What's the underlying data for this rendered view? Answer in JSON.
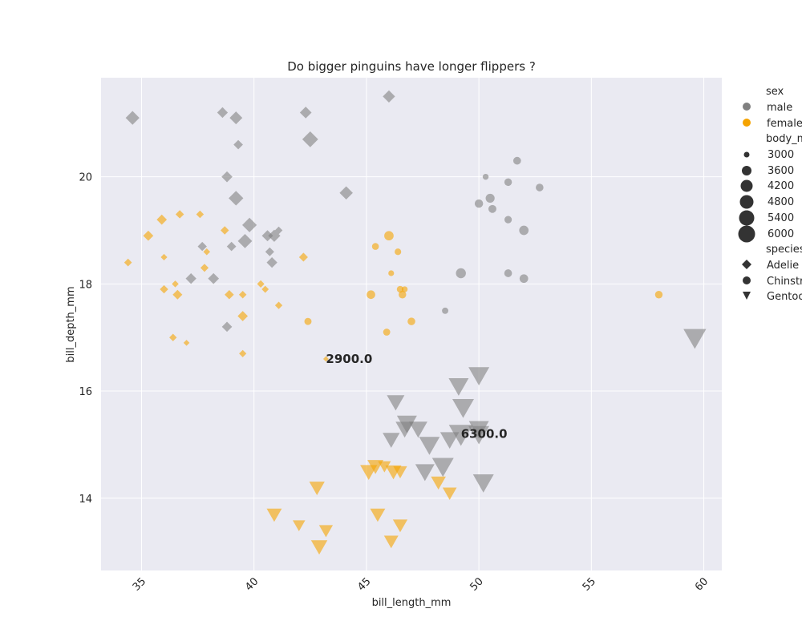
{
  "chart_data": {
    "type": "scatter",
    "title": "Do bigger pinguins have longer flippers ?",
    "xlabel": "bill_length_mm",
    "ylabel": "bill_depth_mm",
    "xlim": [
      33.2,
      60.8
    ],
    "ylim": [
      12.65,
      21.85
    ],
    "xticks": [
      35,
      40,
      45,
      50,
      55,
      60
    ],
    "yticks": [
      14,
      16,
      18,
      20
    ],
    "grid": true,
    "legend_placement": "outside-right",
    "legend": {
      "sex_title": "sex",
      "sex": [
        {
          "label": "male",
          "color": "#808080"
        },
        {
          "label": "female",
          "color": "#f5a300"
        }
      ],
      "size_title": "body_mass_g",
      "sizes": [
        {
          "label": "3000",
          "value": 3000
        },
        {
          "label": "3600",
          "value": 3600
        },
        {
          "label": "4200",
          "value": 4200
        },
        {
          "label": "4800",
          "value": 4800
        },
        {
          "label": "5400",
          "value": 5400
        },
        {
          "label": "6000",
          "value": 6000
        }
      ],
      "species_title": "species",
      "species": [
        {
          "label": "Adelie",
          "marker": "diamond"
        },
        {
          "label": "Chinstrap",
          "marker": "circle"
        },
        {
          "label": "Gentoo",
          "marker": "triangle-down"
        }
      ]
    },
    "colors": {
      "male": "#808080",
      "female": "#f5a300",
      "background": "#eaeaf2",
      "grid": "#ffffff"
    },
    "annotations": [
      {
        "text": "2900.0",
        "x": 43.2,
        "y": 16.6
      },
      {
        "text": "6300.0",
        "x": 49.2,
        "y": 15.2
      }
    ],
    "points": [
      {
        "x": 34.6,
        "y": 21.1,
        "sex": "male",
        "species": "Adelie",
        "mass": 4500
      },
      {
        "x": 38.6,
        "y": 21.2,
        "sex": "male",
        "species": "Adelie",
        "mass": 3900
      },
      {
        "x": 39.2,
        "y": 21.1,
        "sex": "male",
        "species": "Adelie",
        "mass": 4300
      },
      {
        "x": 42.3,
        "y": 21.2,
        "sex": "male",
        "species": "Adelie",
        "mass": 4100
      },
      {
        "x": 42.5,
        "y": 20.7,
        "sex": "male",
        "species": "Adelie",
        "mass": 4900
      },
      {
        "x": 46.0,
        "y": 21.5,
        "sex": "male",
        "species": "Adelie",
        "mass": 4200
      },
      {
        "x": 39.3,
        "y": 20.6,
        "sex": "male",
        "species": "Adelie",
        "mass": 3650
      },
      {
        "x": 38.8,
        "y": 20.0,
        "sex": "male",
        "species": "Adelie",
        "mass": 3950
      },
      {
        "x": 39.2,
        "y": 19.6,
        "sex": "male",
        "species": "Adelie",
        "mass": 4675
      },
      {
        "x": 44.1,
        "y": 19.7,
        "sex": "male",
        "species": "Adelie",
        "mass": 4400
      },
      {
        "x": 39.8,
        "y": 19.1,
        "sex": "male",
        "species": "Adelie",
        "mass": 4650
      },
      {
        "x": 40.6,
        "y": 18.9,
        "sex": "male",
        "species": "Adelie",
        "mass": 4000
      },
      {
        "x": 40.9,
        "y": 18.9,
        "sex": "male",
        "species": "Adelie",
        "mass": 4200
      },
      {
        "x": 41.1,
        "y": 19.0,
        "sex": "male",
        "species": "Adelie",
        "mass": 3300
      },
      {
        "x": 37.7,
        "y": 18.7,
        "sex": "male",
        "species": "Adelie",
        "mass": 3600
      },
      {
        "x": 39.0,
        "y": 18.7,
        "sex": "male",
        "species": "Adelie",
        "mass": 3650
      },
      {
        "x": 39.6,
        "y": 18.8,
        "sex": "male",
        "species": "Adelie",
        "mass": 4600
      },
      {
        "x": 40.7,
        "y": 18.6,
        "sex": "male",
        "species": "Adelie",
        "mass": 3550
      },
      {
        "x": 40.8,
        "y": 18.4,
        "sex": "male",
        "species": "Adelie",
        "mass": 3900
      },
      {
        "x": 37.2,
        "y": 18.1,
        "sex": "male",
        "species": "Adelie",
        "mass": 3900
      },
      {
        "x": 38.2,
        "y": 18.1,
        "sex": "male",
        "species": "Adelie",
        "mass": 3950
      },
      {
        "x": 38.8,
        "y": 17.2,
        "sex": "male",
        "species": "Adelie",
        "mass": 3800
      },
      {
        "x": 34.4,
        "y": 18.4,
        "sex": "female",
        "species": "Adelie",
        "mass": 3325
      },
      {
        "x": 35.3,
        "y": 18.9,
        "sex": "female",
        "species": "Adelie",
        "mass": 3800
      },
      {
        "x": 35.9,
        "y": 19.2,
        "sex": "female",
        "species": "Adelie",
        "mass": 3800
      },
      {
        "x": 36.7,
        "y": 19.3,
        "sex": "female",
        "species": "Adelie",
        "mass": 3450
      },
      {
        "x": 37.6,
        "y": 19.3,
        "sex": "female",
        "species": "Adelie",
        "mass": 3300
      },
      {
        "x": 38.7,
        "y": 19.0,
        "sex": "female",
        "species": "Adelie",
        "mass": 3450
      },
      {
        "x": 36.0,
        "y": 18.5,
        "sex": "female",
        "species": "Adelie",
        "mass": 3100
      },
      {
        "x": 37.8,
        "y": 18.3,
        "sex": "female",
        "species": "Adelie",
        "mass": 3400
      },
      {
        "x": 37.9,
        "y": 18.6,
        "sex": "female",
        "species": "Adelie",
        "mass": 3150
      },
      {
        "x": 42.2,
        "y": 18.5,
        "sex": "female",
        "species": "Adelie",
        "mass": 3550
      },
      {
        "x": 36.0,
        "y": 17.9,
        "sex": "female",
        "species": "Adelie",
        "mass": 3450
      },
      {
        "x": 36.5,
        "y": 18.0,
        "sex": "female",
        "species": "Adelie",
        "mass": 3150
      },
      {
        "x": 36.6,
        "y": 17.8,
        "sex": "female",
        "species": "Adelie",
        "mass": 3700
      },
      {
        "x": 38.9,
        "y": 17.8,
        "sex": "female",
        "species": "Adelie",
        "mass": 3625
      },
      {
        "x": 39.5,
        "y": 17.8,
        "sex": "female",
        "species": "Adelie",
        "mass": 3300
      },
      {
        "x": 40.3,
        "y": 18.0,
        "sex": "female",
        "species": "Adelie",
        "mass": 3250
      },
      {
        "x": 40.5,
        "y": 17.9,
        "sex": "female",
        "species": "Adelie",
        "mass": 3200
      },
      {
        "x": 39.5,
        "y": 17.4,
        "sex": "female",
        "species": "Adelie",
        "mass": 3800
      },
      {
        "x": 41.1,
        "y": 17.6,
        "sex": "female",
        "species": "Adelie",
        "mass": 3275
      },
      {
        "x": 36.4,
        "y": 17.0,
        "sex": "female",
        "species": "Adelie",
        "mass": 3275
      },
      {
        "x": 37.0,
        "y": 16.9,
        "sex": "female",
        "species": "Adelie",
        "mass": 3000
      },
      {
        "x": 39.5,
        "y": 16.7,
        "sex": "female",
        "species": "Adelie",
        "mass": 3250
      },
      {
        "x": 43.2,
        "y": 16.6,
        "sex": "female",
        "species": "Adelie",
        "mass": 2900
      },
      {
        "x": 50.3,
        "y": 20.0,
        "sex": "male",
        "species": "Chinstrap",
        "mass": 3300
      },
      {
        "x": 51.7,
        "y": 20.3,
        "sex": "male",
        "species": "Chinstrap",
        "mass": 3750
      },
      {
        "x": 51.3,
        "y": 19.9,
        "sex": "male",
        "species": "Chinstrap",
        "mass": 3700
      },
      {
        "x": 52.7,
        "y": 19.8,
        "sex": "male",
        "species": "Chinstrap",
        "mass": 3725
      },
      {
        "x": 50.0,
        "y": 19.5,
        "sex": "male",
        "species": "Chinstrap",
        "mass": 3900
      },
      {
        "x": 50.5,
        "y": 19.6,
        "sex": "male",
        "species": "Chinstrap",
        "mass": 4050
      },
      {
        "x": 50.6,
        "y": 19.4,
        "sex": "male",
        "species": "Chinstrap",
        "mass": 3800
      },
      {
        "x": 51.3,
        "y": 19.2,
        "sex": "male",
        "species": "Chinstrap",
        "mass": 3650
      },
      {
        "x": 52.0,
        "y": 19.0,
        "sex": "male",
        "species": "Chinstrap",
        "mass": 4150
      },
      {
        "x": 49.2,
        "y": 18.2,
        "sex": "male",
        "species": "Chinstrap",
        "mass": 4300
      },
      {
        "x": 51.3,
        "y": 18.2,
        "sex": "male",
        "species": "Chinstrap",
        "mass": 3750
      },
      {
        "x": 52.0,
        "y": 18.1,
        "sex": "male",
        "species": "Chinstrap",
        "mass": 3950
      },
      {
        "x": 48.5,
        "y": 17.5,
        "sex": "male",
        "species": "Chinstrap",
        "mass": 3400
      },
      {
        "x": 46.0,
        "y": 18.9,
        "sex": "female",
        "species": "Chinstrap",
        "mass": 4150
      },
      {
        "x": 45.4,
        "y": 18.7,
        "sex": "female",
        "species": "Chinstrap",
        "mass": 3525
      },
      {
        "x": 46.4,
        "y": 18.6,
        "sex": "female",
        "species": "Chinstrap",
        "mass": 3450
      },
      {
        "x": 46.1,
        "y": 18.2,
        "sex": "female",
        "species": "Chinstrap",
        "mass": 3250
      },
      {
        "x": 46.5,
        "y": 17.9,
        "sex": "female",
        "species": "Chinstrap",
        "mass": 3500
      },
      {
        "x": 46.7,
        "y": 17.9,
        "sex": "female",
        "species": "Chinstrap",
        "mass": 3300
      },
      {
        "x": 45.2,
        "y": 17.8,
        "sex": "female",
        "species": "Chinstrap",
        "mass": 3950
      },
      {
        "x": 46.6,
        "y": 17.8,
        "sex": "female",
        "species": "Chinstrap",
        "mass": 3700
      },
      {
        "x": 58.0,
        "y": 17.8,
        "sex": "female",
        "species": "Chinstrap",
        "mass": 3700
      },
      {
        "x": 42.4,
        "y": 17.3,
        "sex": "female",
        "species": "Chinstrap",
        "mass": 3600
      },
      {
        "x": 47.0,
        "y": 17.3,
        "sex": "female",
        "species": "Chinstrap",
        "mass": 3725
      },
      {
        "x": 45.9,
        "y": 17.1,
        "sex": "female",
        "species": "Chinstrap",
        "mass": 3575
      },
      {
        "x": 59.6,
        "y": 17.0,
        "sex": "male",
        "species": "Gentoo",
        "mass": 6050
      },
      {
        "x": 50.0,
        "y": 16.3,
        "sex": "male",
        "species": "Gentoo",
        "mass": 5700
      },
      {
        "x": 49.1,
        "y": 16.1,
        "sex": "male",
        "species": "Gentoo",
        "mass": 5550
      },
      {
        "x": 46.3,
        "y": 15.8,
        "sex": "male",
        "species": "Gentoo",
        "mass": 5100
      },
      {
        "x": 49.3,
        "y": 15.7,
        "sex": "male",
        "species": "Gentoo",
        "mass": 5850
      },
      {
        "x": 46.8,
        "y": 15.4,
        "sex": "male",
        "species": "Gentoo",
        "mass": 5550
      },
      {
        "x": 46.7,
        "y": 15.3,
        "sex": "male",
        "species": "Gentoo",
        "mass": 5200
      },
      {
        "x": 47.3,
        "y": 15.3,
        "sex": "male",
        "species": "Gentoo",
        "mass": 5250
      },
      {
        "x": 50.0,
        "y": 15.3,
        "sex": "male",
        "species": "Gentoo",
        "mass": 5550
      },
      {
        "x": 49.2,
        "y": 15.2,
        "sex": "male",
        "species": "Gentoo",
        "mass": 6300
      },
      {
        "x": 46.1,
        "y": 15.1,
        "sex": "male",
        "species": "Gentoo",
        "mass": 5000
      },
      {
        "x": 48.7,
        "y": 15.1,
        "sex": "male",
        "species": "Gentoo",
        "mass": 5350
      },
      {
        "x": 50.0,
        "y": 15.2,
        "sex": "male",
        "species": "Gentoo",
        "mass": 5700
      },
      {
        "x": 47.8,
        "y": 15.0,
        "sex": "male",
        "species": "Gentoo",
        "mass": 5650
      },
      {
        "x": 48.4,
        "y": 14.6,
        "sex": "male",
        "species": "Gentoo",
        "mass": 5850
      },
      {
        "x": 47.6,
        "y": 14.5,
        "sex": "male",
        "species": "Gentoo",
        "mass": 5400
      },
      {
        "x": 50.2,
        "y": 14.3,
        "sex": "male",
        "species": "Gentoo",
        "mass": 5700
      },
      {
        "x": 45.4,
        "y": 14.6,
        "sex": "female",
        "species": "Gentoo",
        "mass": 4800
      },
      {
        "x": 45.1,
        "y": 14.5,
        "sex": "female",
        "species": "Gentoo",
        "mass": 5000
      },
      {
        "x": 45.8,
        "y": 14.6,
        "sex": "female",
        "species": "Gentoo",
        "mass": 4200
      },
      {
        "x": 46.2,
        "y": 14.5,
        "sex": "female",
        "species": "Gentoo",
        "mass": 4800
      },
      {
        "x": 46.5,
        "y": 14.5,
        "sex": "female",
        "species": "Gentoo",
        "mass": 4400
      },
      {
        "x": 42.8,
        "y": 14.2,
        "sex": "female",
        "species": "Gentoo",
        "mass": 4700
      },
      {
        "x": 48.2,
        "y": 14.3,
        "sex": "female",
        "species": "Gentoo",
        "mass": 4600
      },
      {
        "x": 48.7,
        "y": 14.1,
        "sex": "female",
        "species": "Gentoo",
        "mass": 4450
      },
      {
        "x": 40.9,
        "y": 13.7,
        "sex": "female",
        "species": "Gentoo",
        "mass": 4650
      },
      {
        "x": 45.5,
        "y": 13.7,
        "sex": "female",
        "species": "Gentoo",
        "mass": 4650
      },
      {
        "x": 42.0,
        "y": 13.5,
        "sex": "female",
        "species": "Gentoo",
        "mass": 4150
      },
      {
        "x": 46.5,
        "y": 13.5,
        "sex": "female",
        "species": "Gentoo",
        "mass": 4550
      },
      {
        "x": 43.2,
        "y": 13.4,
        "sex": "female",
        "species": "Gentoo",
        "mass": 4400
      },
      {
        "x": 46.1,
        "y": 13.2,
        "sex": "female",
        "species": "Gentoo",
        "mass": 4500
      },
      {
        "x": 42.9,
        "y": 13.1,
        "sex": "female",
        "species": "Gentoo",
        "mass": 4875
      }
    ]
  }
}
